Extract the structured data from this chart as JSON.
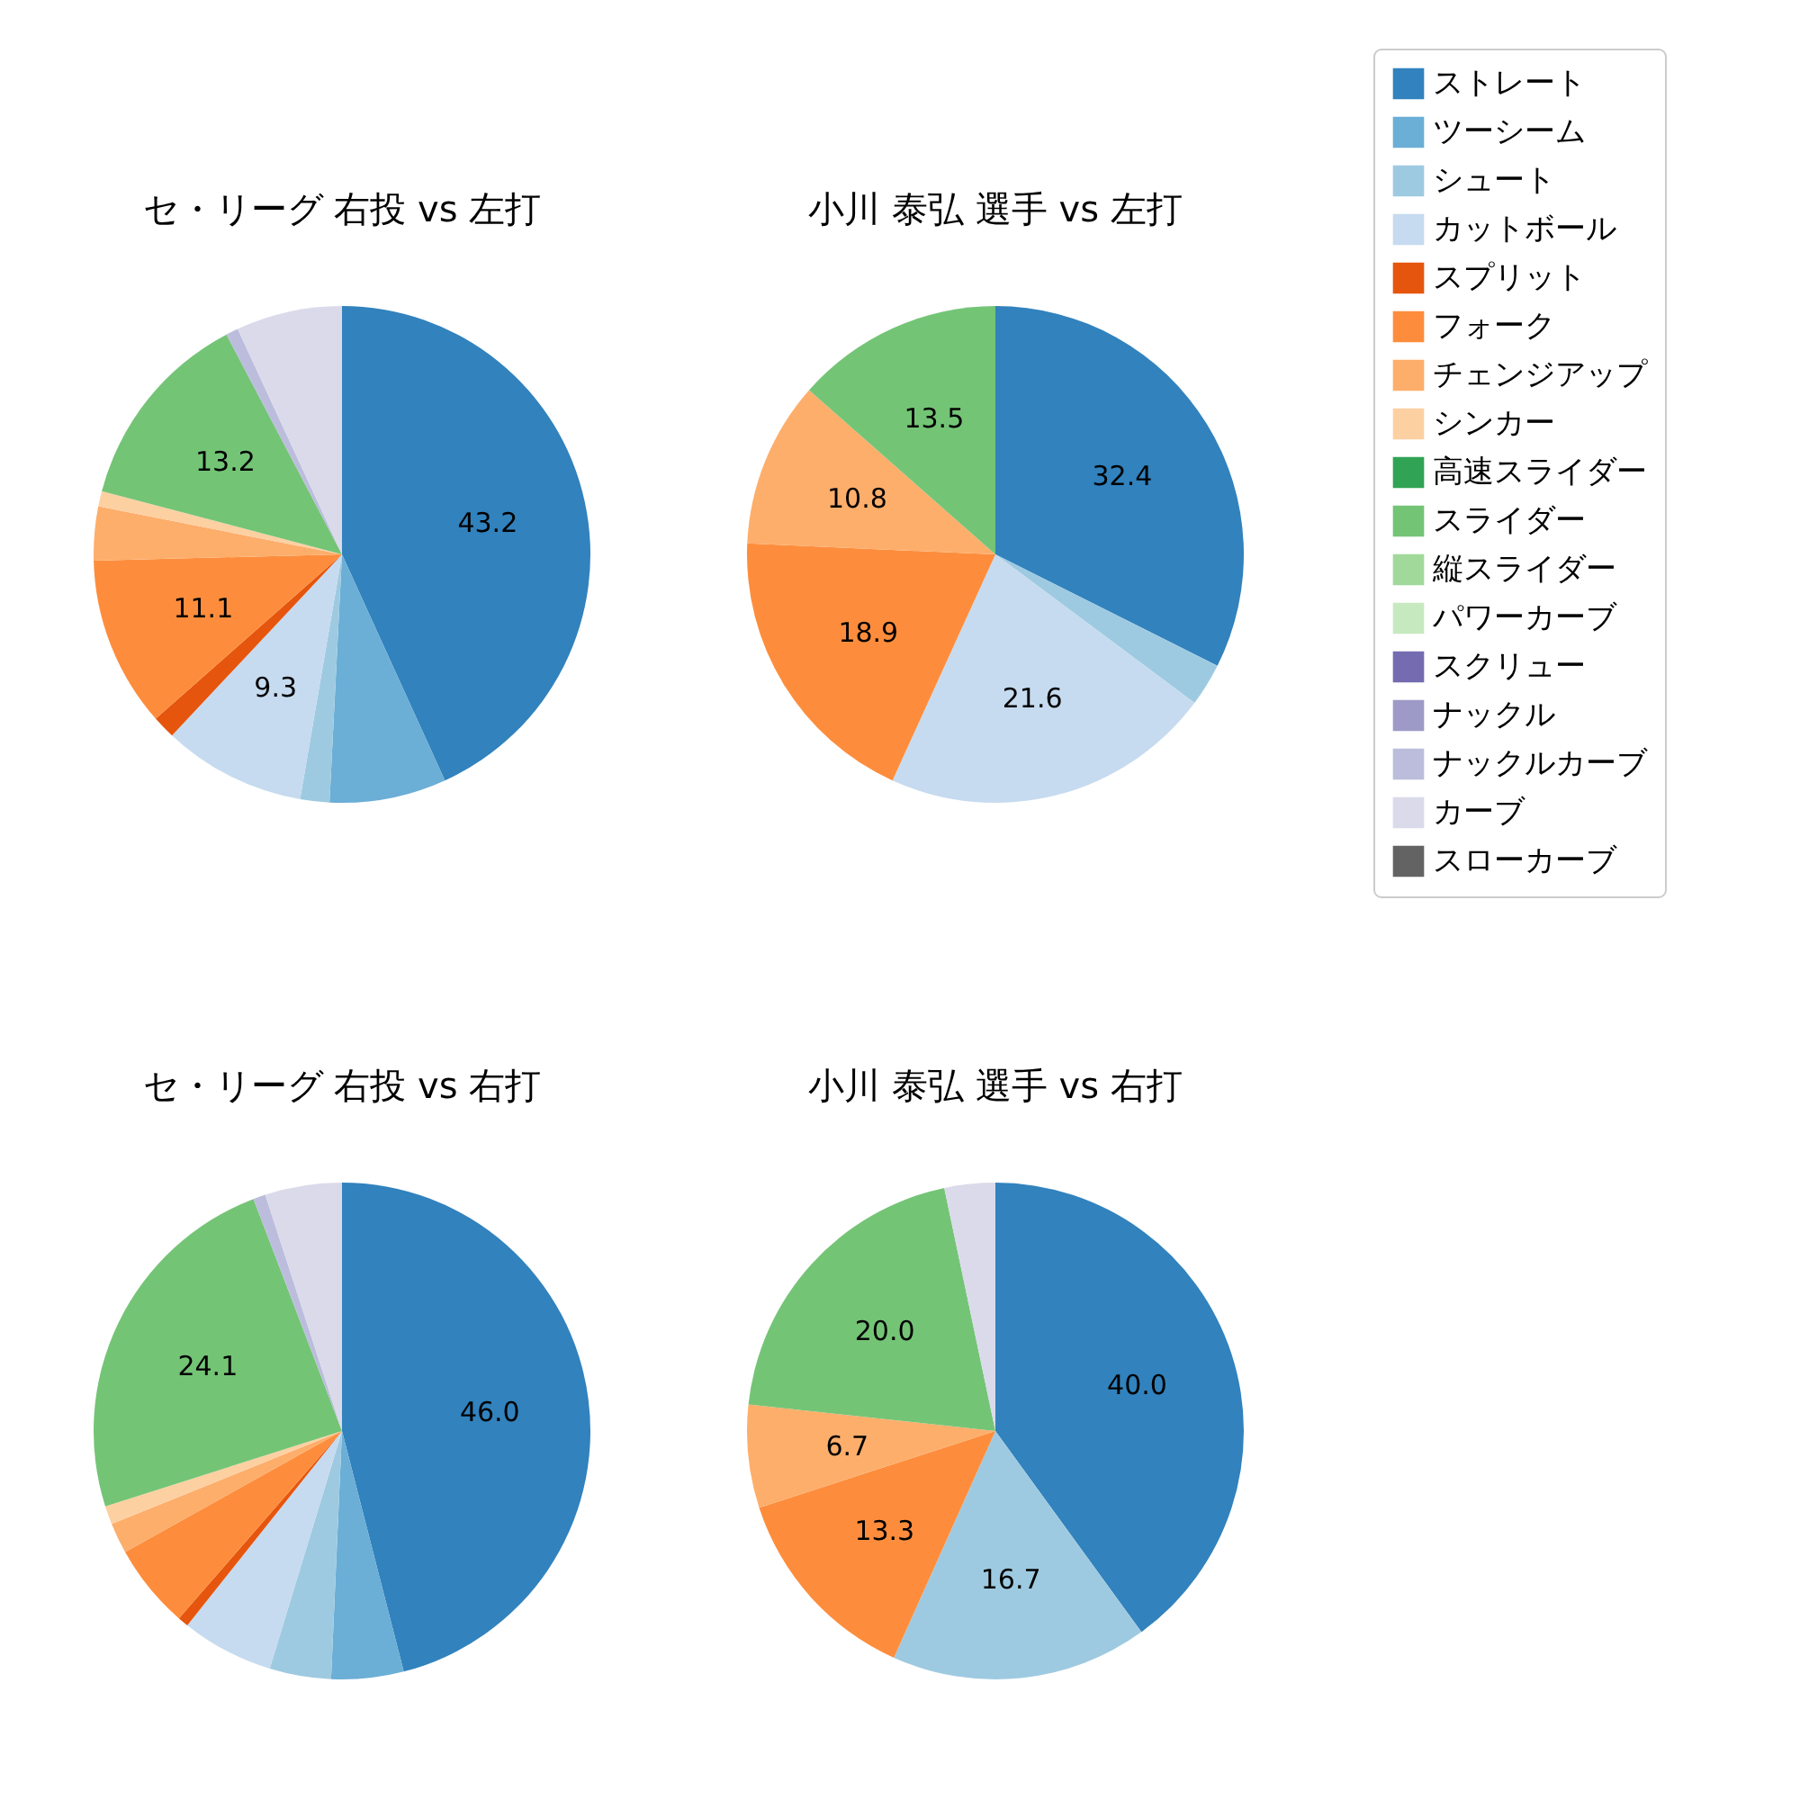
{
  "chart_data": [
    {
      "type": "pie",
      "title": "セ・リーグ 右投 vs 左打",
      "legend": "top right",
      "categories": [
        "ストレート",
        "ツーシーム",
        "シュート",
        "カットボール",
        "スプリット",
        "フォーク",
        "チェンジアップ",
        "シンカー",
        "高速スライダー",
        "スライダー",
        "縦スライダー",
        "パワーカーブ",
        "スクリュー",
        "ナックル",
        "ナックルカーブ",
        "カーブ",
        "スローカーブ"
      ],
      "values": [
        43.2,
        7.6,
        1.9,
        9.3,
        1.5,
        11.1,
        3.5,
        1.0,
        0,
        13.2,
        0,
        0,
        0,
        0,
        0.8,
        6.9,
        0
      ],
      "value_labels": [
        "43.2",
        null,
        null,
        "9.3",
        null,
        "11.1",
        null,
        null,
        null,
        "13.2",
        null,
        null,
        null,
        null,
        null,
        null,
        null
      ],
      "colors": [
        "#3182bd",
        "#6baed6",
        "#9ecae1",
        "#c6dbef",
        "#e6550d",
        "#fd8d3c",
        "#fdae6b",
        "#fdd0a2",
        "#31a354",
        "#74c476",
        "#a1d99b",
        "#c7e9c0",
        "#756bb1",
        "#9e9ac8",
        "#bcbddc",
        "#dadaeb",
        "#636363"
      ]
    },
    {
      "type": "pie",
      "title": "小川 泰弘 選手 vs 左打",
      "categories": [
        null,
        null,
        null,
        null,
        null,
        null,
        null,
        null,
        null,
        null,
        null,
        null,
        null,
        null,
        null,
        null,
        null
      ],
      "values": [
        32.4,
        0,
        2.8,
        21.6,
        0,
        18.9,
        10.8,
        0,
        0,
        13.5,
        0,
        0,
        0,
        0,
        0,
        0,
        0
      ],
      "value_labels": [
        "32.4",
        null,
        null,
        "21.6",
        null,
        "18.9",
        "10.8",
        null,
        null,
        "13.5",
        null,
        null,
        null,
        null,
        null,
        null,
        null
      ],
      "colors": [
        "#3182bd",
        "#6baed6",
        "#9ecae1",
        "#c6dbef",
        "#e6550d",
        "#fd8d3c",
        "#fdae6b",
        "#fdd0a2",
        "#31a354",
        "#74c476",
        "#a1d99b",
        "#c7e9c0",
        "#756bb1",
        "#9e9ac8",
        "#bcbddc",
        "#dadaeb",
        "#636363"
      ]
    },
    {
      "type": "pie",
      "title": "セ・リーグ 右投 vs 右打",
      "categories": [
        null,
        null,
        null,
        null,
        null,
        null,
        null,
        null,
        null,
        null,
        null,
        null,
        null,
        null,
        null,
        null,
        null
      ],
      "values": [
        46.0,
        4.7,
        4.0,
        6.0,
        0.7,
        5.5,
        2.0,
        1.2,
        0,
        24.1,
        0,
        0,
        0,
        0,
        0.8,
        5.0,
        0
      ],
      "value_labels": [
        "46.0",
        null,
        null,
        null,
        null,
        null,
        null,
        null,
        null,
        "24.1",
        null,
        null,
        null,
        null,
        null,
        null,
        null
      ],
      "colors": [
        "#3182bd",
        "#6baed6",
        "#9ecae1",
        "#c6dbef",
        "#e6550d",
        "#fd8d3c",
        "#fdae6b",
        "#fdd0a2",
        "#31a354",
        "#74c476",
        "#a1d99b",
        "#c7e9c0",
        "#756bb1",
        "#9e9ac8",
        "#bcbddc",
        "#dadaeb",
        "#636363"
      ]
    },
    {
      "type": "pie",
      "title": "小川 泰弘 選手 vs 右打",
      "categories": [
        null,
        null,
        null,
        null,
        null,
        null,
        null,
        null,
        null,
        null,
        null,
        null,
        null,
        null,
        null,
        null,
        null
      ],
      "values": [
        40.0,
        0,
        16.7,
        0,
        0,
        13.3,
        6.7,
        0,
        0,
        20.0,
        0,
        0,
        0,
        0,
        0,
        3.3,
        0
      ],
      "value_labels": [
        "40.0",
        null,
        "16.7",
        null,
        null,
        "13.3",
        "6.7",
        null,
        null,
        "20.0",
        null,
        null,
        null,
        null,
        null,
        null,
        null
      ],
      "colors": [
        "#3182bd",
        "#6baed6",
        "#9ecae1",
        "#c6dbef",
        "#e6550d",
        "#fd8d3c",
        "#fdae6b",
        "#fdd0a2",
        "#31a354",
        "#74c476",
        "#a1d99b",
        "#c7e9c0",
        "#756bb1",
        "#9e9ac8",
        "#bcbddc",
        "#dadaeb",
        "#636363"
      ]
    }
  ]
}
